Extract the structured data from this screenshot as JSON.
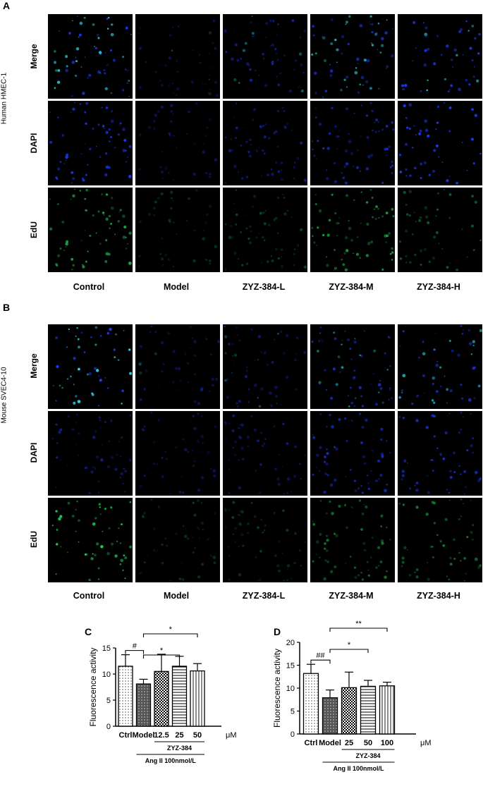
{
  "figure": {
    "panel_a": {
      "letter": "A",
      "cell_line": "Human HMEC-1",
      "rows": [
        "Merge",
        "DAPI",
        "EdU"
      ],
      "columns": [
        "Control",
        "Model",
        "ZYZ-384-L",
        "ZYZ-384-M",
        "ZYZ-384-H"
      ]
    },
    "panel_b": {
      "letter": "B",
      "cell_line": "Mouse SVEC4-10",
      "rows": [
        "Merge",
        "DAPI",
        "EdU"
      ],
      "columns": [
        "Control",
        "Model",
        "ZYZ-384-L",
        "ZYZ-384-M",
        "ZYZ-384-H"
      ]
    },
    "colors": {
      "dapi": "#1f3cff",
      "edu": "#22d05a",
      "merge": "#33d6e6",
      "background": "#000000"
    },
    "panel_c_letter": "C",
    "panel_d_letter": "D"
  },
  "chart_data": [
    {
      "type": "bar",
      "panel": "C",
      "ylabel": "Fluorescence activity",
      "ylim": [
        0,
        15
      ],
      "yticks": [
        "0",
        "5",
        "10",
        "15"
      ],
      "categories": [
        "Ctrl",
        "Model",
        "12.5",
        "25",
        "50"
      ],
      "values": [
        11.5,
        8.1,
        10.5,
        11.5,
        10.6
      ],
      "errors": [
        2.2,
        0.9,
        3.3,
        1.9,
        1.4
      ],
      "patterns": [
        "dots",
        "dense",
        "checker",
        "hlines",
        "vlines"
      ],
      "unit": "μM",
      "drug_label": "ZYZ-384",
      "condition_label": "Ang II 100nmol/L",
      "significance": [
        {
          "from": 0,
          "to": 1,
          "label": "#"
        },
        {
          "from": 1,
          "to": 3,
          "label": "*"
        },
        {
          "from": 1,
          "to": 4,
          "label": "*"
        }
      ]
    },
    {
      "type": "bar",
      "panel": "D",
      "ylabel": "Fluorescence activity",
      "ylim": [
        0,
        20
      ],
      "yticks": [
        "0",
        "5",
        "10",
        "15",
        "20"
      ],
      "categories": [
        "Ctrl",
        "Model",
        "25",
        "50",
        "100"
      ],
      "values": [
        13.2,
        7.9,
        10.1,
        10.4,
        10.5
      ],
      "errors": [
        2.0,
        1.7,
        3.4,
        1.3,
        0.8
      ],
      "patterns": [
        "dots",
        "dense",
        "checker",
        "hlines",
        "vlines"
      ],
      "unit": "μM",
      "drug_label": "ZYZ-384",
      "condition_label": "Ang II 100nmol/L",
      "significance": [
        {
          "from": 0,
          "to": 1,
          "label": "##"
        },
        {
          "from": 1,
          "to": 3,
          "label": "*"
        },
        {
          "from": 1,
          "to": 4,
          "label": "**"
        }
      ]
    }
  ]
}
